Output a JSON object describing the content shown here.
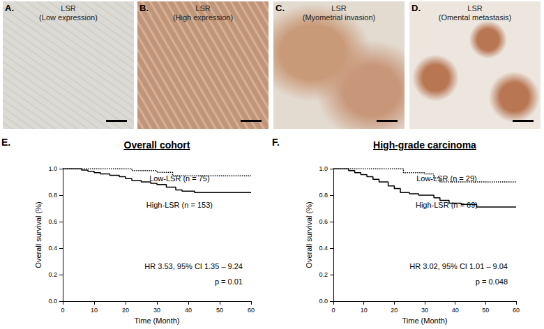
{
  "panels": [
    {
      "label": "A.",
      "title": "LSR",
      "subtitle": "(Low expression)"
    },
    {
      "label": "B.",
      "title": "LSR",
      "subtitle": "(High expression)"
    },
    {
      "label": "C.",
      "title": "LSR",
      "subtitle": "(Myometrial invasion)"
    },
    {
      "label": "D.",
      "title": "LSR",
      "subtitle": "(Omental metastasis)"
    }
  ],
  "chart_data": [
    {
      "type": "line",
      "label": "E.",
      "title": "Overall cohort",
      "xlabel": "Time (Month)",
      "ylabel": "Overall survival (%)",
      "xlim": [
        0,
        60
      ],
      "xticks": [
        0,
        10,
        20,
        30,
        40,
        50,
        60
      ],
      "ylim": [
        0,
        1
      ],
      "yticks": [
        {
          "value": 0,
          "label": "0.0"
        },
        {
          "value": 0.2,
          "label": "0.2"
        },
        {
          "value": 0.4,
          "label": "0.4"
        },
        {
          "value": 0.6,
          "label": "0.6"
        },
        {
          "value": 0.8,
          "label": "0.8"
        },
        {
          "value": 1,
          "label": "1.0"
        }
      ],
      "series": [
        {
          "name": "Low-LSR (n = 75)",
          "color": "#000000",
          "line_style": "dotted",
          "x": [
            0,
            22,
            30,
            35,
            60
          ],
          "values": [
            1,
            0.986,
            0.972,
            0.946,
            0.946
          ]
        },
        {
          "name": "High-LSR (n = 153)",
          "color": "#000000",
          "line_style": "solid",
          "x": [
            0,
            6,
            8,
            10,
            12,
            15,
            18,
            20,
            22,
            25,
            28,
            30,
            33,
            36,
            38,
            42,
            60
          ],
          "values": [
            1,
            0.99,
            0.98,
            0.97,
            0.96,
            0.95,
            0.94,
            0.925,
            0.91,
            0.9,
            0.89,
            0.88,
            0.86,
            0.84,
            0.83,
            0.82,
            0.82
          ]
        }
      ],
      "annotations": [
        "HR 3.53, 95% CI 1.35 – 9.24",
        "p = 0.01"
      ]
    },
    {
      "type": "line",
      "label": "F.",
      "title": "High-grade carcinoma",
      "xlabel": "Time (Month)",
      "ylabel": "Overall survival (%)",
      "xlim": [
        0,
        60
      ],
      "xticks": [
        0,
        10,
        20,
        30,
        40,
        50,
        60
      ],
      "ylim": [
        0,
        1
      ],
      "yticks": [
        {
          "value": 0,
          "label": "0.0"
        },
        {
          "value": 0.2,
          "label": "0.2"
        },
        {
          "value": 0.4,
          "label": "0.4"
        },
        {
          "value": 0.6,
          "label": "0.6"
        },
        {
          "value": 0.8,
          "label": "0.8"
        },
        {
          "value": 1,
          "label": "1.0"
        }
      ],
      "series": [
        {
          "name": "Low-LSR (n = 29)",
          "color": "#000000",
          "line_style": "dotted",
          "x": [
            0,
            23,
            30,
            33,
            35,
            60
          ],
          "values": [
            1,
            0.97,
            0.96,
            0.93,
            0.9,
            0.9
          ]
        },
        {
          "name": "High-LSR (n = 69)",
          "color": "#000000",
          "line_style": "solid",
          "x": [
            0,
            5,
            7,
            9,
            11,
            13,
            15,
            18,
            20,
            22,
            25,
            28,
            33,
            35,
            38,
            42,
            47,
            60
          ],
          "values": [
            1,
            0.985,
            0.97,
            0.955,
            0.94,
            0.92,
            0.9,
            0.87,
            0.85,
            0.82,
            0.81,
            0.8,
            0.78,
            0.76,
            0.74,
            0.73,
            0.71,
            0.71
          ]
        }
      ],
      "annotations": [
        "HR 3.02, 95% CI 1.01 – 9.04",
        "p = 0.048"
      ]
    }
  ]
}
